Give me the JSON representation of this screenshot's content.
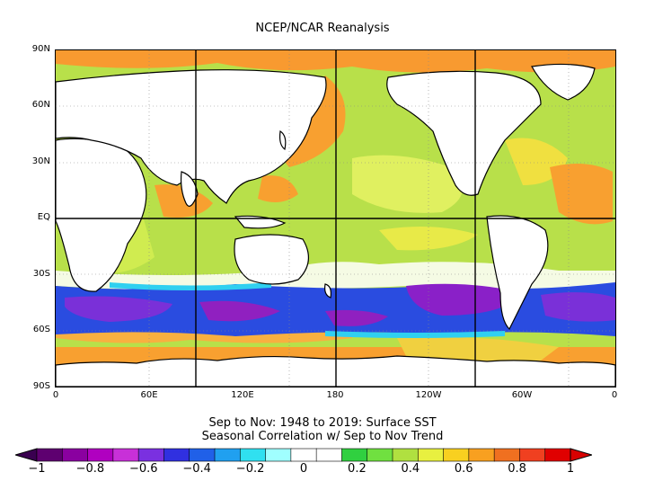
{
  "title": "NCEP/NCAR Reanalysis",
  "caption": {
    "line1": "Sep to Nov: 1948 to 2019: Surface SST",
    "line2": "Seasonal Correlation w/ Sep to Nov Trend"
  },
  "map": {
    "type": "global correlation map",
    "projection": "equirectangular, 0 to 360 longitude",
    "lat_ticks": [
      "90N",
      "60N",
      "30N",
      "EQ",
      "30S",
      "60S",
      "90S"
    ],
    "lon_ticks": [
      "0",
      "60E",
      "120E",
      "180",
      "120W",
      "60W",
      "0"
    ]
  },
  "colorbar": {
    "labels": [
      "−1",
      "−0.8",
      "−0.6",
      "−0.4",
      "−0.2",
      "0",
      "0.2",
      "0.4",
      "0.6",
      "0.8",
      "1"
    ],
    "colors": [
      "#5e0070",
      "#8a00a0",
      "#b000c0",
      "#c830d8",
      "#7a30e0",
      "#3030e0",
      "#2060e8",
      "#20a0f0",
      "#30e0f0",
      "#a0ffff",
      "#ffffff",
      "#ffffff",
      "#30d040",
      "#70e040",
      "#b0e040",
      "#e8f040",
      "#f8d020",
      "#f8a020",
      "#f07020",
      "#f04020",
      "#e00000"
    ],
    "left_arrow_color": "#3a0050",
    "right_arrow_color": "#d80000"
  },
  "colors": {
    "land": "#ffffff",
    "ocean_base": "#b8e04a",
    "high_positive": "#f89a30",
    "strong_negative": "#7a30d8",
    "blue_band": "#2a4ce0"
  }
}
